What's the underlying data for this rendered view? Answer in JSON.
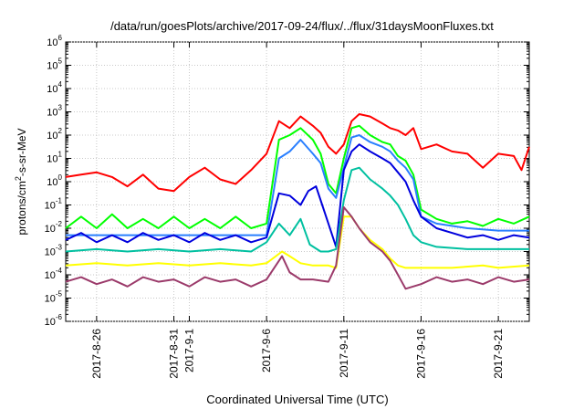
{
  "chart_data": {
    "type": "line",
    "title": "/data/run/goesPlots/archive/2017-09-24/flux/../flux/31daysMoonFluxes.txt",
    "xlabel": "Coordinated Universal Time (UTC)",
    "ylabel": "protons/cm²-s-sr-MeV",
    "y_scale": "log",
    "ylim_exponent": [
      -6,
      6
    ],
    "y_tick_exponents": [
      -6,
      -5,
      -4,
      -3,
      -2,
      -1,
      0,
      1,
      2,
      3,
      4,
      5,
      6
    ],
    "xlim_day": [
      0,
      30
    ],
    "x_ticks": [
      {
        "label": "2017-8-26",
        "day": 2
      },
      {
        "label": "2017-8-31",
        "day": 7
      },
      {
        "label": "2017-9-1",
        "day": 8
      },
      {
        "label": "2017-9-6",
        "day": 13
      },
      {
        "label": "2017-9-11",
        "day": 18
      },
      {
        "label": "2017-9-16",
        "day": 23
      },
      {
        "label": "2017-9-21",
        "day": 28
      }
    ],
    "grid": true,
    "series": [
      {
        "color": "#ff0000",
        "points": [
          [
            0,
            0.2
          ],
          [
            1,
            0.3
          ],
          [
            2,
            0.4
          ],
          [
            3,
            0.2
          ],
          [
            4,
            -0.2
          ],
          [
            5,
            0.3
          ],
          [
            6,
            -0.3
          ],
          [
            7,
            -0.4
          ],
          [
            8,
            0.2
          ],
          [
            9,
            0.6
          ],
          [
            10,
            0.1
          ],
          [
            11,
            -0.1
          ],
          [
            12,
            0.5
          ],
          [
            13,
            1.2
          ],
          [
            13.8,
            2.6
          ],
          [
            14.5,
            2.3
          ],
          [
            15.2,
            2.8
          ],
          [
            16,
            2.4
          ],
          [
            16.5,
            2.1
          ],
          [
            17,
            1.5
          ],
          [
            17.5,
            1.2
          ],
          [
            18,
            1.6
          ],
          [
            18.5,
            2.6
          ],
          [
            19,
            2.9
          ],
          [
            19.7,
            2.8
          ],
          [
            20.5,
            2.5
          ],
          [
            21,
            2.3
          ],
          [
            21.5,
            2.2
          ],
          [
            22,
            2.0
          ],
          [
            22.5,
            2.3
          ],
          [
            23,
            1.4
          ],
          [
            24,
            1.6
          ],
          [
            25,
            1.3
          ],
          [
            26,
            1.2
          ],
          [
            27,
            0.6
          ],
          [
            28,
            1.2
          ],
          [
            29,
            1.1
          ],
          [
            29.5,
            0.5
          ],
          [
            30,
            1.5
          ]
        ]
      },
      {
        "color": "#00ff00",
        "points": [
          [
            0,
            -2.0
          ],
          [
            1,
            -1.5
          ],
          [
            2,
            -2.0
          ],
          [
            3,
            -1.4
          ],
          [
            4,
            -2.0
          ],
          [
            5,
            -1.6
          ],
          [
            6,
            -2.0
          ],
          [
            7,
            -1.5
          ],
          [
            8,
            -2.0
          ],
          [
            9,
            -1.6
          ],
          [
            10,
            -2.0
          ],
          [
            11,
            -1.5
          ],
          [
            12,
            -2.0
          ],
          [
            13,
            -1.8
          ],
          [
            13.8,
            1.8
          ],
          [
            14.5,
            2.0
          ],
          [
            15.2,
            2.3
          ],
          [
            16,
            1.8
          ],
          [
            16.5,
            1.2
          ],
          [
            17,
            -0.1
          ],
          [
            17.5,
            -0.5
          ],
          [
            18,
            1.0
          ],
          [
            18.5,
            2.3
          ],
          [
            19,
            2.4
          ],
          [
            19.7,
            2.0
          ],
          [
            20.5,
            1.7
          ],
          [
            21,
            1.6
          ],
          [
            21.5,
            1.1
          ],
          [
            22,
            0.9
          ],
          [
            22.5,
            0.3
          ],
          [
            23,
            -1.2
          ],
          [
            24,
            -1.6
          ],
          [
            25,
            -1.8
          ],
          [
            26,
            -1.7
          ],
          [
            27,
            -1.9
          ],
          [
            28,
            -1.6
          ],
          [
            29,
            -1.8
          ],
          [
            30,
            -1.5
          ]
        ]
      },
      {
        "color": "#2a7fff",
        "points": [
          [
            0,
            -2.3
          ],
          [
            2,
            -2.3
          ],
          [
            4,
            -2.3
          ],
          [
            6,
            -2.3
          ],
          [
            8,
            -2.3
          ],
          [
            10,
            -2.3
          ],
          [
            12,
            -2.3
          ],
          [
            13,
            -2.3
          ],
          [
            13.8,
            1.0
          ],
          [
            14.5,
            1.3
          ],
          [
            15.2,
            1.8
          ],
          [
            16,
            1.2
          ],
          [
            16.5,
            0.8
          ],
          [
            17,
            -0.3
          ],
          [
            17.5,
            -0.7
          ],
          [
            18,
            0.6
          ],
          [
            18.5,
            1.9
          ],
          [
            19,
            2.0
          ],
          [
            19.7,
            1.7
          ],
          [
            20.5,
            1.5
          ],
          [
            21,
            1.3
          ],
          [
            21.5,
            0.9
          ],
          [
            22,
            0.6
          ],
          [
            22.5,
            0.1
          ],
          [
            23,
            -1.5
          ],
          [
            24,
            -1.8
          ],
          [
            26,
            -2.0
          ],
          [
            28,
            -2.1
          ],
          [
            30,
            -2.1
          ]
        ]
      },
      {
        "color": "#0000dd",
        "points": [
          [
            0,
            -2.5
          ],
          [
            1,
            -2.2
          ],
          [
            2,
            -2.6
          ],
          [
            3,
            -2.3
          ],
          [
            4,
            -2.6
          ],
          [
            5,
            -2.2
          ],
          [
            6,
            -2.5
          ],
          [
            7,
            -2.3
          ],
          [
            8,
            -2.6
          ],
          [
            9,
            -2.2
          ],
          [
            10,
            -2.5
          ],
          [
            11,
            -2.3
          ],
          [
            12,
            -2.6
          ],
          [
            13,
            -2.4
          ],
          [
            13.8,
            -0.5
          ],
          [
            14.5,
            -0.6
          ],
          [
            15.2,
            -1.0
          ],
          [
            15.7,
            -0.4
          ],
          [
            16.2,
            -0.2
          ],
          [
            16.6,
            -1.0
          ],
          [
            17,
            -1.8
          ],
          [
            17.5,
            -2.8
          ],
          [
            18,
            0.5
          ],
          [
            18.5,
            1.3
          ],
          [
            19,
            1.6
          ],
          [
            19.7,
            1.3
          ],
          [
            20.5,
            1.0
          ],
          [
            21,
            0.8
          ],
          [
            21.5,
            0.4
          ],
          [
            22,
            0.0
          ],
          [
            22.5,
            -0.8
          ],
          [
            23,
            -1.5
          ],
          [
            24,
            -2.0
          ],
          [
            25,
            -2.2
          ],
          [
            26,
            -2.4
          ],
          [
            27,
            -2.3
          ],
          [
            28,
            -2.5
          ],
          [
            29,
            -2.3
          ],
          [
            30,
            -2.4
          ]
        ]
      },
      {
        "color": "#00c0a0",
        "points": [
          [
            0,
            -3.0
          ],
          [
            2,
            -2.9
          ],
          [
            4,
            -3.0
          ],
          [
            6,
            -2.9
          ],
          [
            8,
            -3.0
          ],
          [
            10,
            -2.9
          ],
          [
            12,
            -3.0
          ],
          [
            13,
            -2.6
          ],
          [
            13.8,
            -1.8
          ],
          [
            14.5,
            -2.3
          ],
          [
            15.2,
            -1.6
          ],
          [
            15.8,
            -2.7
          ],
          [
            16.5,
            -3.0
          ],
          [
            17,
            -3.0
          ],
          [
            17.5,
            -2.9
          ],
          [
            18,
            -0.8
          ],
          [
            18.5,
            0.5
          ],
          [
            19,
            0.6
          ],
          [
            19.7,
            0.1
          ],
          [
            20.5,
            -0.3
          ],
          [
            21,
            -0.6
          ],
          [
            21.5,
            -1.0
          ],
          [
            22,
            -1.6
          ],
          [
            22.5,
            -2.3
          ],
          [
            23,
            -2.6
          ],
          [
            24,
            -2.8
          ],
          [
            26,
            -2.9
          ],
          [
            28,
            -2.9
          ],
          [
            30,
            -2.9
          ]
        ]
      },
      {
        "color": "#ffff00",
        "points": [
          [
            0,
            -3.6
          ],
          [
            2,
            -3.5
          ],
          [
            4,
            -3.6
          ],
          [
            6,
            -3.5
          ],
          [
            8,
            -3.6
          ],
          [
            10,
            -3.5
          ],
          [
            12,
            -3.6
          ],
          [
            13,
            -3.5
          ],
          [
            14,
            -3.0
          ],
          [
            14.5,
            -3.2
          ],
          [
            15.2,
            -3.5
          ],
          [
            16,
            -3.6
          ],
          [
            17,
            -3.6
          ],
          [
            17.5,
            -3.7
          ],
          [
            18,
            -1.5
          ],
          [
            18.5,
            -1.5
          ],
          [
            19,
            -2.0
          ],
          [
            19.7,
            -2.5
          ],
          [
            20.5,
            -2.9
          ],
          [
            21,
            -3.3
          ],
          [
            21.5,
            -3.6
          ],
          [
            22,
            -3.7
          ],
          [
            23,
            -3.7
          ],
          [
            25,
            -3.7
          ],
          [
            27,
            -3.6
          ],
          [
            28,
            -3.7
          ],
          [
            30,
            -3.6
          ]
        ]
      },
      {
        "color": "#9b3a6a",
        "points": [
          [
            0,
            -4.3
          ],
          [
            1,
            -4.1
          ],
          [
            2,
            -4.4
          ],
          [
            3,
            -4.2
          ],
          [
            4,
            -4.5
          ],
          [
            5,
            -4.1
          ],
          [
            6,
            -4.3
          ],
          [
            7,
            -4.2
          ],
          [
            8,
            -4.5
          ],
          [
            9,
            -4.1
          ],
          [
            10,
            -4.3
          ],
          [
            11,
            -4.2
          ],
          [
            12,
            -4.5
          ],
          [
            13,
            -4.2
          ],
          [
            14,
            -3.2
          ],
          [
            14.5,
            -3.9
          ],
          [
            15.2,
            -4.2
          ],
          [
            16,
            -4.2
          ],
          [
            17,
            -4.3
          ],
          [
            17.5,
            -3.6
          ],
          [
            18,
            -1.1
          ],
          [
            18.5,
            -1.5
          ],
          [
            19,
            -2.0
          ],
          [
            19.7,
            -2.6
          ],
          [
            20.5,
            -3.0
          ],
          [
            21,
            -3.4
          ],
          [
            21.5,
            -4.0
          ],
          [
            22,
            -4.6
          ],
          [
            23,
            -4.4
          ],
          [
            24,
            -4.1
          ],
          [
            25,
            -4.3
          ],
          [
            26,
            -4.2
          ],
          [
            27,
            -4.4
          ],
          [
            28,
            -4.1
          ],
          [
            29,
            -4.3
          ],
          [
            30,
            -4.2
          ]
        ]
      }
    ]
  }
}
